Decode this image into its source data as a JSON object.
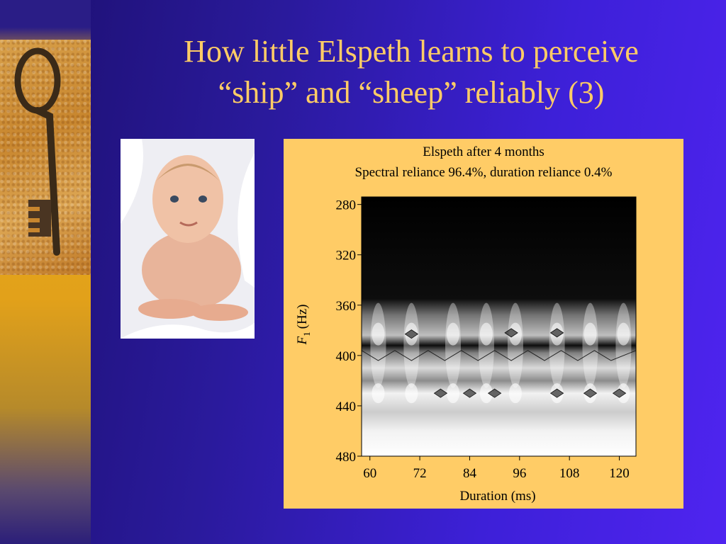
{
  "slide": {
    "title_line1": "How little Elspeth learns to perceive",
    "title_line2": "“ship” and “sheep” reliably (3)",
    "title_color": "#ffcc66",
    "panel_color": "#ffcc66"
  },
  "images": {
    "key_photo": "old-iron-key",
    "baby_photo": "baby-in-white-blanket"
  },
  "chart_data": {
    "type": "heatmap",
    "title": "Elspeth after 4 months",
    "subtitle": "Spectral reliance 96.4%, duration reliance 0.4%",
    "xlabel": "Duration (ms)",
    "ylabel_italic": "F",
    "ylabel_sub": "1",
    "ylabel_unit": "(Hz)",
    "xlim": [
      58,
      124
    ],
    "ylim": [
      480,
      274
    ],
    "x_ticks": [
      60,
      72,
      84,
      96,
      108,
      120
    ],
    "y_ticks": [
      280,
      320,
      360,
      400,
      440,
      480
    ],
    "x_tick_labels": [
      "60",
      "72",
      "84",
      "96",
      "108",
      "120"
    ],
    "y_tick_labels": [
      "280",
      "320",
      "360",
      "400",
      "440",
      "480"
    ],
    "intensity_profile": [
      {
        "f1": 274,
        "level": 0.0
      },
      {
        "f1": 355,
        "level": 0.05
      },
      {
        "f1": 368,
        "level": 0.45
      },
      {
        "f1": 384,
        "level": 0.75
      },
      {
        "f1": 392,
        "level": 0.05
      },
      {
        "f1": 398,
        "level": 0.5
      },
      {
        "f1": 410,
        "level": 0.85
      },
      {
        "f1": 420,
        "level": 0.55
      },
      {
        "f1": 430,
        "level": 0.95
      },
      {
        "f1": 445,
        "level": 0.8
      },
      {
        "f1": 460,
        "level": 0.95
      },
      {
        "f1": 480,
        "level": 1.0
      }
    ],
    "bright_spots_x": [
      62,
      70,
      80,
      88,
      95,
      105,
      113,
      121
    ],
    "contour_markers": [
      {
        "x": 70,
        "y": 383
      },
      {
        "x": 94,
        "y": 382
      },
      {
        "x": 105,
        "y": 382
      },
      {
        "x": 77,
        "y": 430
      },
      {
        "x": 84,
        "y": 430
      },
      {
        "x": 90,
        "y": 430
      },
      {
        "x": 105,
        "y": 430
      },
      {
        "x": 113,
        "y": 430
      },
      {
        "x": 120,
        "y": 430
      }
    ]
  }
}
